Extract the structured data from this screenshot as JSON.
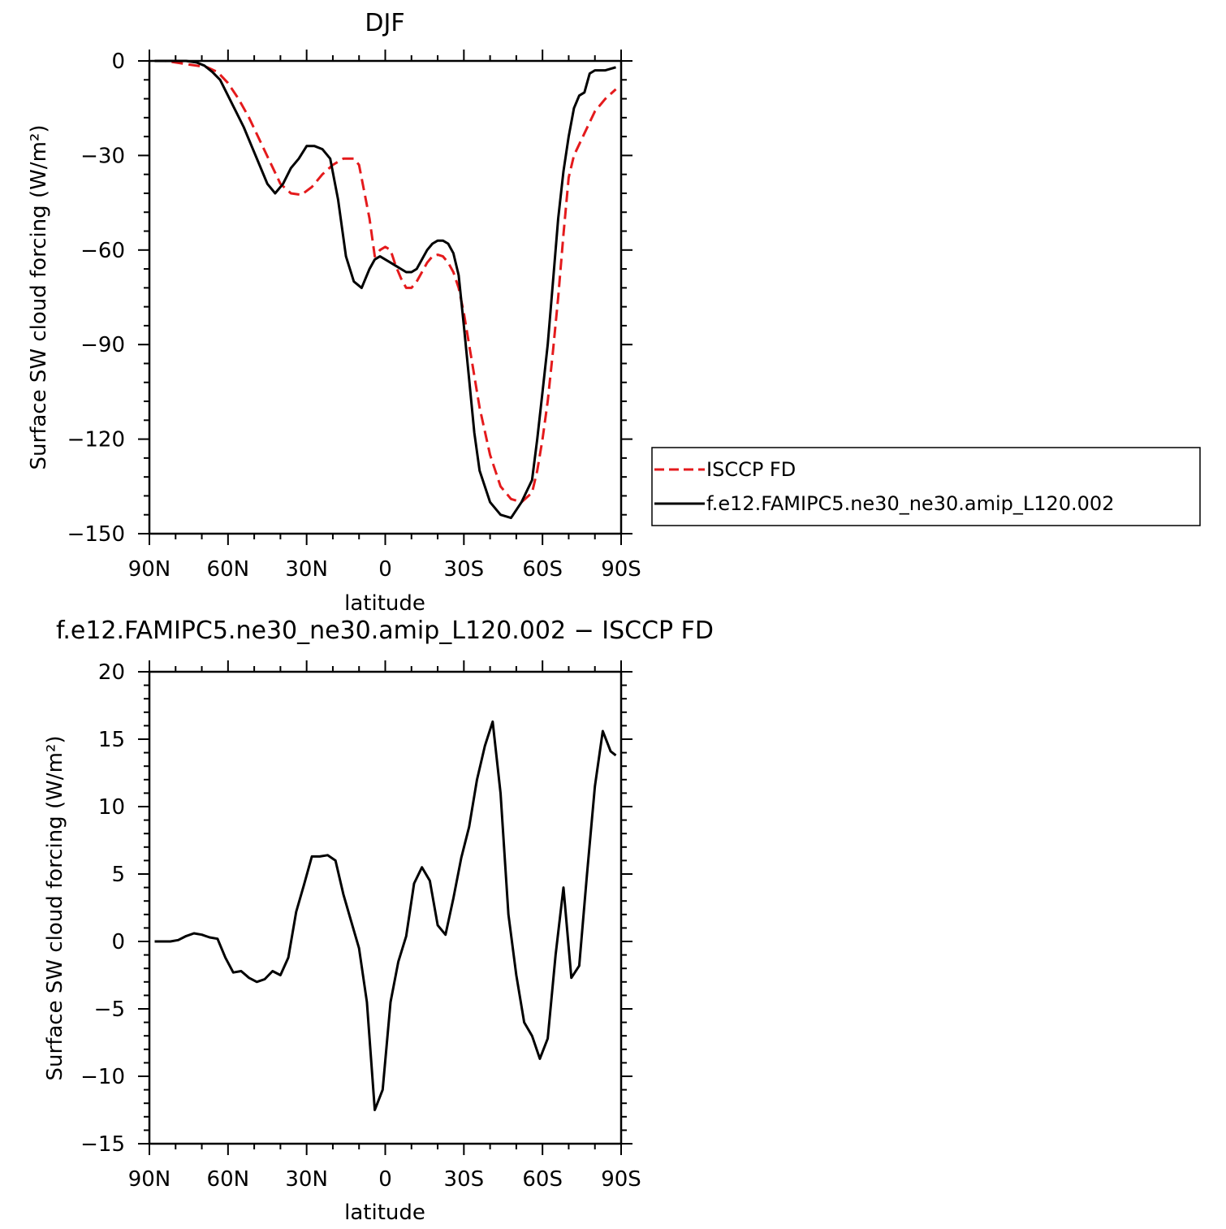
{
  "chart_data": [
    {
      "type": "line",
      "title": "DJF",
      "xlabel": "latitude",
      "ylabel": "Surface SW cloud forcing (W/m²)",
      "xlim": [
        -90,
        90
      ],
      "ylim": [
        -150,
        0
      ],
      "x_tick_values": [
        -90,
        -60,
        -30,
        0,
        30,
        60,
        90
      ],
      "x_tick_labels": [
        "90N",
        "60N",
        "30N",
        "0",
        "30S",
        "60S",
        "90S"
      ],
      "y_ticks": [
        0,
        -30,
        -60,
        -90,
        -120,
        -150
      ],
      "y_tick_labels": [
        "0",
        "−30",
        "−60",
        "−90",
        "−120",
        "−150"
      ],
      "legend_position": "right",
      "series": [
        {
          "name": "ISCCP FD",
          "color": "#e41a1c",
          "dash": "dashed",
          "x": [
            -88,
            -84,
            -80,
            -76,
            -72,
            -68,
            -64,
            -60,
            -56,
            -52,
            -48,
            -44,
            -40,
            -36,
            -32,
            -28,
            -24,
            -20,
            -16,
            -12,
            -10,
            -6,
            -4,
            -2,
            0,
            2,
            4,
            6,
            8,
            10,
            12,
            14,
            16,
            18,
            20,
            22,
            24,
            26,
            28,
            30,
            33,
            36,
            40,
            44,
            48,
            52,
            56,
            58,
            60,
            62,
            64,
            66,
            68,
            70,
            72,
            76,
            80,
            84,
            88
          ],
          "y": [
            0,
            0,
            -0.5,
            -1,
            -1.5,
            -2,
            -3.5,
            -7,
            -12,
            -18,
            -25,
            -32,
            -39,
            -42,
            -42.5,
            -40,
            -36,
            -33,
            -31,
            -31,
            -33,
            -50,
            -62,
            -60,
            -59,
            -60,
            -65,
            -69,
            -72,
            -72,
            -70,
            -67,
            -64,
            -62,
            -61.5,
            -62,
            -64,
            -67,
            -72,
            -80,
            -95,
            -110,
            -125,
            -135,
            -139,
            -140,
            -137,
            -130,
            -120,
            -108,
            -92,
            -75,
            -55,
            -37,
            -30,
            -23,
            -16,
            -12,
            -9
          ]
        },
        {
          "name": "f.e12.FAMIPC5.ne30_ne30.amip_L120.002",
          "color": "#000000",
          "dash": "solid",
          "x": [
            -88,
            -84,
            -80,
            -76,
            -72,
            -69,
            -66,
            -63,
            -60,
            -57,
            -54,
            -51,
            -48,
            -45,
            -42,
            -39,
            -36,
            -33,
            -30,
            -27,
            -24,
            -21,
            -18,
            -15,
            -12,
            -9,
            -6,
            -4,
            -2,
            0,
            2,
            4,
            6,
            8,
            10,
            12,
            14,
            16,
            18,
            20,
            22,
            24,
            26,
            28,
            30,
            32,
            34,
            36,
            40,
            44,
            48,
            52,
            56,
            58,
            60,
            62,
            64,
            66,
            68,
            70,
            72,
            74,
            76,
            78,
            80,
            84,
            88
          ],
          "y": [
            0,
            0,
            0,
            0,
            -0.5,
            -1.5,
            -3.5,
            -6,
            -11,
            -16,
            -21,
            -27,
            -33,
            -39,
            -42,
            -39,
            -34,
            -31,
            -27,
            -27,
            -28,
            -31,
            -44,
            -62,
            -70,
            -72,
            -66,
            -63,
            -62,
            -63,
            -64,
            -65,
            -66,
            -67,
            -67,
            -66,
            -63,
            -60,
            -58,
            -57,
            -57,
            -58,
            -61,
            -68,
            -84,
            -101,
            -118,
            -130,
            -140,
            -144,
            -145,
            -140,
            -133,
            -120,
            -105,
            -90,
            -70,
            -50,
            -35,
            -24,
            -15,
            -11,
            -10,
            -4,
            -3,
            -3,
            -2
          ]
        }
      ]
    },
    {
      "type": "line",
      "title": "f.e12.FAMIPC5.ne30_ne30.amip_L120.002 − ISCCP FD",
      "xlabel": "latitude",
      "ylabel": "Surface SW cloud forcing (W/m²)",
      "xlim": [
        -90,
        90
      ],
      "ylim": [
        -15,
        20
      ],
      "x_tick_values": [
        -90,
        -60,
        -30,
        0,
        30,
        60,
        90
      ],
      "x_tick_labels": [
        "90N",
        "60N",
        "30N",
        "0",
        "30S",
        "60S",
        "90S"
      ],
      "y_ticks": [
        20,
        15,
        10,
        5,
        0,
        -5,
        -10,
        -15
      ],
      "y_tick_labels": [
        "20",
        "15",
        "10",
        "5",
        "0",
        "−5",
        "−10",
        "−15"
      ],
      "series": [
        {
          "color": "#000000",
          "x": [
            -88,
            -85,
            -82,
            -79,
            -76,
            -73,
            -70,
            -67,
            -64,
            -61,
            -58,
            -55,
            -52,
            -49,
            -46,
            -43,
            -40,
            -37,
            -34,
            -31,
            -28,
            -25,
            -22,
            -19,
            -16,
            -13,
            -10,
            -7,
            -4,
            -1,
            2,
            5,
            8,
            11,
            14,
            17,
            20,
            23,
            26,
            29,
            32,
            35,
            38,
            41,
            44,
            47,
            50,
            53,
            56,
            59,
            62,
            65,
            68,
            71,
            74,
            77,
            80,
            83,
            86,
            88
          ],
          "y": [
            0,
            0,
            0,
            0.1,
            0.4,
            0.6,
            0.5,
            0.3,
            0.2,
            -1.2,
            -2.3,
            -2.2,
            -2.7,
            -3.0,
            -2.8,
            -2.2,
            -2.5,
            -1.2,
            2.2,
            4.2,
            6.3,
            6.3,
            6.4,
            6.0,
            3.5,
            1.5,
            -0.5,
            -4.5,
            -12.5,
            -11,
            -4.5,
            -1.5,
            0.4,
            4.3,
            5.5,
            4.5,
            1.2,
            0.5,
            3.2,
            6.2,
            8.5,
            12,
            14.5,
            16.3,
            11,
            2,
            -2.5,
            -6,
            -7,
            -8.7,
            -7.2,
            -1,
            4,
            -2.7,
            -1.8,
            5,
            11.5,
            15.6,
            14.1,
            13.8
          ]
        }
      ]
    }
  ]
}
